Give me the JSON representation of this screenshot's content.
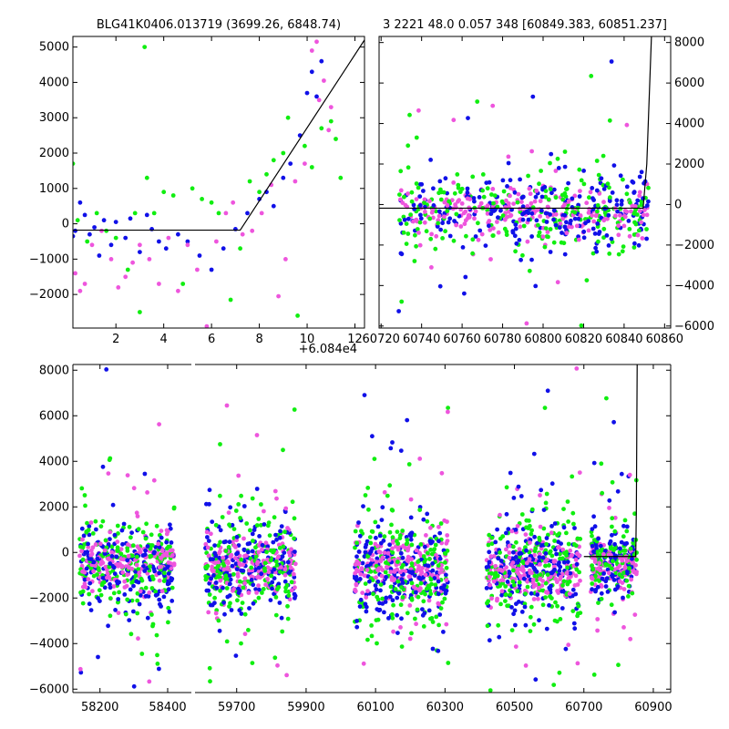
{
  "colors": {
    "blue": "#1010e8",
    "green": "#10ee10",
    "magenta": "#ee55dd",
    "model": "#000000"
  },
  "chart_data": [
    {
      "id": "top-left",
      "type": "scatter",
      "title": "BLG41K0406.013719 (3699.26, 6848.74)",
      "xlim": [
        0.2,
        12.4
      ],
      "ylim": [
        -2950,
        5300
      ],
      "x_offset_label": "+6.084e4",
      "x_ticks": [
        2,
        4,
        6,
        8,
        10,
        12
      ],
      "y_ticks": [
        -2000,
        -1000,
        0,
        1000,
        2000,
        3000,
        4000,
        5000
      ],
      "y_tick_side": "left",
      "model_line": {
        "x": [
          0.2,
          7.2,
          12.4
        ],
        "y": [
          -180,
          -180,
          5200
        ]
      },
      "series": [
        {
          "name": "blue",
          "color_key": "blue",
          "points": [
            [
              0.2,
              -350
            ],
            [
              0.3,
              -200
            ],
            [
              0.5,
              600
            ],
            [
              0.7,
              250
            ],
            [
              0.9,
              -300
            ],
            [
              1.1,
              -100
            ],
            [
              1.3,
              -900
            ],
            [
              1.5,
              100
            ],
            [
              1.8,
              -600
            ],
            [
              2.0,
              50
            ],
            [
              2.4,
              -400
            ],
            [
              2.6,
              150
            ],
            [
              3.0,
              -800
            ],
            [
              3.3,
              250
            ],
            [
              3.5,
              -150
            ],
            [
              3.8,
              -500
            ],
            [
              4.1,
              -700
            ],
            [
              4.6,
              -300
            ],
            [
              5.0,
              -500
            ],
            [
              5.5,
              -900
            ],
            [
              6.0,
              -1300
            ],
            [
              6.5,
              -700
            ],
            [
              7.0,
              -150
            ],
            [
              7.5,
              300
            ],
            [
              8.0,
              700
            ],
            [
              8.3,
              900
            ],
            [
              8.6,
              500
            ],
            [
              9.0,
              1300
            ],
            [
              9.3,
              1700
            ],
            [
              9.7,
              2500
            ],
            [
              10.0,
              3700
            ],
            [
              10.2,
              4300
            ],
            [
              10.4,
              3600
            ],
            [
              10.6,
              4600
            ]
          ]
        },
        {
          "name": "green",
          "color_key": "green",
          "points": [
            [
              0.2,
              1700
            ],
            [
              0.4,
              100
            ],
            [
              0.8,
              -500
            ],
            [
              1.2,
              300
            ],
            [
              1.6,
              -200
            ],
            [
              2.0,
              -400
            ],
            [
              2.5,
              -1300
            ],
            [
              2.8,
              300
            ],
            [
              3.0,
              -2500
            ],
            [
              3.2,
              5000
            ],
            [
              3.3,
              1300
            ],
            [
              3.6,
              300
            ],
            [
              4.0,
              900
            ],
            [
              4.4,
              800
            ],
            [
              4.8,
              -1700
            ],
            [
              5.2,
              1000
            ],
            [
              5.6,
              700
            ],
            [
              6.0,
              600
            ],
            [
              6.3,
              300
            ],
            [
              6.8,
              -2150
            ],
            [
              7.2,
              -700
            ],
            [
              7.6,
              1200
            ],
            [
              8.0,
              900
            ],
            [
              8.3,
              1400
            ],
            [
              8.6,
              1800
            ],
            [
              9.0,
              2000
            ],
            [
              9.2,
              3000
            ],
            [
              9.6,
              -2600
            ],
            [
              9.9,
              2200
            ],
            [
              10.2,
              1600
            ],
            [
              10.6,
              2700
            ],
            [
              11.0,
              2900
            ],
            [
              11.2,
              2400
            ],
            [
              11.4,
              1300
            ]
          ]
        },
        {
          "name": "magenta",
          "color_key": "magenta",
          "points": [
            [
              0.3,
              -1400
            ],
            [
              0.5,
              -1900
            ],
            [
              0.7,
              -1700
            ],
            [
              1.0,
              -600
            ],
            [
              1.4,
              -200
            ],
            [
              1.8,
              -1000
            ],
            [
              2.1,
              -1800
            ],
            [
              2.4,
              -1500
            ],
            [
              2.7,
              -1100
            ],
            [
              3.0,
              -600
            ],
            [
              3.4,
              -1000
            ],
            [
              3.8,
              -1700
            ],
            [
              4.2,
              -400
            ],
            [
              4.6,
              -1900
            ],
            [
              5.0,
              -600
            ],
            [
              5.4,
              -1300
            ],
            [
              5.8,
              -2900
            ],
            [
              6.2,
              -500
            ],
            [
              6.6,
              300
            ],
            [
              6.9,
              600
            ],
            [
              7.3,
              -300
            ],
            [
              7.7,
              -200
            ],
            [
              8.1,
              300
            ],
            [
              8.5,
              1100
            ],
            [
              8.8,
              -2050
            ],
            [
              9.1,
              -1000
            ],
            [
              9.5,
              1200
            ],
            [
              9.9,
              1700
            ],
            [
              10.2,
              4900
            ],
            [
              10.4,
              5150
            ],
            [
              10.5,
              3500
            ],
            [
              10.7,
              4050
            ],
            [
              10.9,
              2650
            ],
            [
              11.0,
              3300
            ]
          ]
        }
      ]
    },
    {
      "id": "top-right",
      "type": "scatter",
      "title": "3 2221 48.0 0.057 348 [60849.383, 60851.237]",
      "xlim": [
        60719,
        60863
      ],
      "ylim": [
        -6100,
        8300
      ],
      "x_ticks": [
        60720,
        60740,
        60760,
        60780,
        60800,
        60820,
        60840,
        60860
      ],
      "y_ticks": [
        -6000,
        -4000,
        -2000,
        0,
        2000,
        4000,
        6000,
        8000
      ],
      "y_tick_side": "right",
      "model_line": {
        "x": [
          60719,
          60849.4,
          60851.2,
          60853.5
        ],
        "y": [
          -180,
          -180,
          2000,
          8300
        ]
      },
      "cluster": {
        "x_range": [
          60728,
          60852
        ],
        "center_y": -400,
        "spread": 1600,
        "count": 700
      },
      "series": []
    },
    {
      "id": "bottom",
      "type": "scatter",
      "title": "",
      "ylim": [
        -6150,
        8250
      ],
      "x_ticks_labels": [
        "58200",
        "58400",
        "59700",
        "59900",
        "60100",
        "60300",
        "60500",
        "60700",
        "60900"
      ],
      "y_ticks": [
        -6000,
        -4000,
        -2000,
        0,
        2000,
        4000,
        6000,
        8000
      ],
      "y_tick_side": "left",
      "broken_axis": true,
      "segments": [
        {
          "xlim": [
            58120,
            58470
          ],
          "x_ticks": [
            58200,
            58400
          ],
          "clusters": [
            {
              "x_range": [
                58140,
                58420
              ],
              "center_y": -500,
              "spread": 1700,
              "count": 550
            }
          ]
        },
        {
          "xlim": [
            59580,
            60950
          ],
          "x_ticks": [
            59700,
            59900,
            60100,
            60300,
            60500,
            60700,
            60900
          ],
          "clusters": [
            {
              "x_range": [
                59610,
                59870
              ],
              "center_y": -600,
              "spread": 1800,
              "count": 550
            },
            {
              "x_range": [
                60040,
                60310
              ],
              "center_y": -800,
              "spread": 1900,
              "count": 600
            },
            {
              "x_range": [
                60420,
                60690
              ],
              "center_y": -700,
              "spread": 1900,
              "count": 600
            },
            {
              "x_range": [
                60720,
                60852
              ],
              "center_y": -500,
              "spread": 1400,
              "count": 350
            }
          ],
          "model_line": {
            "x": [
              60700,
              60849.4,
              60851.2,
              60853.5
            ],
            "y": [
              -180,
              -180,
              2000,
              8250
            ]
          }
        }
      ]
    }
  ]
}
